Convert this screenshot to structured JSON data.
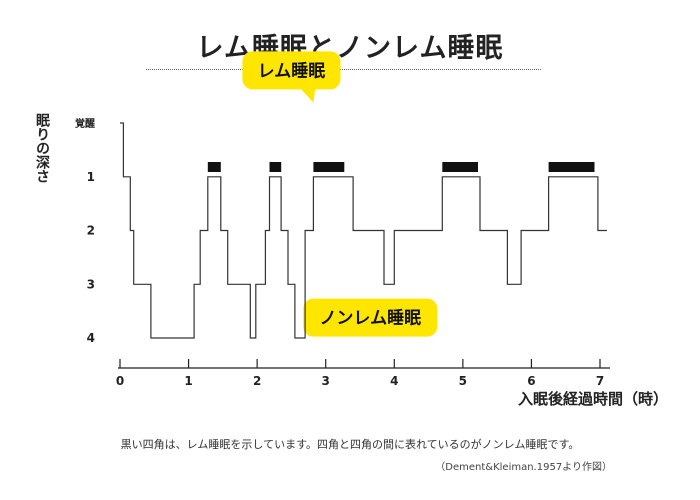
{
  "title": "レム睡眠とノンレム睡眠",
  "footnote": "黒い四角は、レム睡眠を示しています。四角と四角の間に表れているのがノンレム睡眠です。",
  "source": "（Dement&Kleiman.1957より作図）",
  "chart_data": {
    "type": "line",
    "title": "レム睡眠とノンレム睡眠",
    "xlabel": "入眠後経過時間（時）",
    "ylabel": "眠りの深さ",
    "xlim": [
      0,
      7
    ],
    "ylim": [
      0,
      4
    ],
    "x_ticks": [
      0,
      1,
      2,
      3,
      4,
      5,
      6,
      7
    ],
    "y_ticks": [
      0,
      1,
      2,
      3,
      4
    ],
    "y_tick_labels": [
      "覚醒",
      "1",
      "2",
      "3",
      "4"
    ],
    "y_inverted": true,
    "grid": false,
    "series": [
      {
        "name": "",
        "step": true,
        "x": [
          0.0,
          0.05,
          0.05,
          0.15,
          0.15,
          0.2,
          0.2,
          0.45,
          0.45,
          1.08,
          1.08,
          1.17,
          1.17,
          1.28,
          1.28,
          1.47,
          1.47,
          1.57,
          1.57,
          1.9,
          1.9,
          1.98,
          1.98,
          2.12,
          2.12,
          2.18,
          2.18,
          2.35,
          2.35,
          2.45,
          2.45,
          2.55,
          2.55,
          2.7,
          2.7,
          2.82,
          2.82,
          3.0,
          3.0,
          3.4,
          3.4,
          3.85,
          3.85,
          4.0,
          4.0,
          4.7,
          4.7,
          5.25,
          5.25,
          5.65,
          5.65,
          5.85,
          5.85,
          6.25,
          6.25,
          6.97,
          6.97,
          7.1
        ],
        "y": [
          0,
          0,
          1,
          1,
          2,
          2,
          3,
          3,
          4,
          4,
          3,
          3,
          2,
          2,
          1,
          1,
          2,
          2,
          3,
          3,
          4,
          4,
          3,
          3,
          2,
          2,
          1,
          1,
          2,
          2,
          3,
          3,
          4,
          4,
          2,
          2,
          1,
          1,
          1,
          1,
          2,
          2,
          3,
          3,
          2,
          2,
          1,
          1,
          2,
          2,
          3,
          3,
          2,
          2,
          1,
          1,
          2,
          2
        ]
      }
    ],
    "rem_periods": [
      [
        1.28,
        1.47
      ],
      [
        2.18,
        2.35
      ],
      [
        2.82,
        3.27
      ],
      [
        4.7,
        5.22
      ],
      [
        6.25,
        6.92
      ]
    ],
    "annotations": [
      {
        "text": "レム睡眠",
        "x": 2.5,
        "y": -0.98,
        "pointer": [
          2.82,
          -0.38
        ],
        "color": "#ffe600"
      },
      {
        "text": "ノンレム睡眠",
        "x": 3.65,
        "y": 3.62,
        "pointer": [
          2.88,
          3.9
        ],
        "color": "#ffe600"
      }
    ],
    "colors": {
      "line": "#333333",
      "rem_bar": "#111111",
      "callout": "#ffe600",
      "axis": "#222222"
    }
  }
}
